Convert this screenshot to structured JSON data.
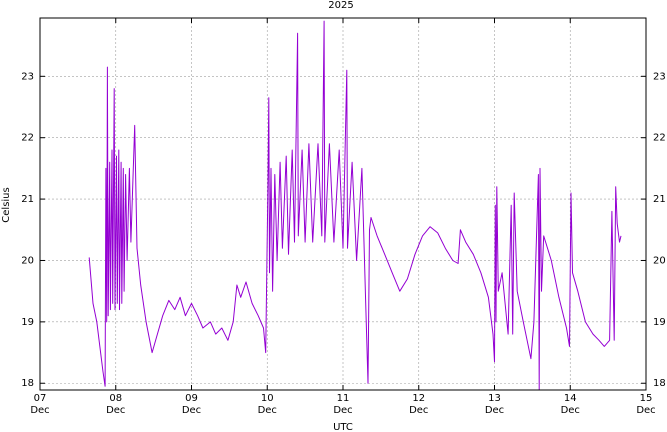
{
  "chart_data": {
    "type": "line",
    "title": "2025",
    "x_label": "UTC",
    "y_label": "Celsius",
    "color": "#9400d3",
    "grid": true,
    "xlim": [
      7,
      15
    ],
    "xticks": [
      {
        "value": 7,
        "label": "07 Dec"
      },
      {
        "value": 8,
        "label": "08 Dec"
      },
      {
        "value": 9,
        "label": "09 Dec"
      },
      {
        "value": 10,
        "label": "10 Dec"
      },
      {
        "value": 11,
        "label": "11 Dec"
      },
      {
        "value": 12,
        "label": "12 Dec"
      },
      {
        "value": 13,
        "label": "13 Dec"
      },
      {
        "value": 14,
        "label": "14 Dec"
      },
      {
        "value": 15,
        "label": "15 Dec"
      }
    ],
    "ylim": [
      17.89,
      23.95
    ],
    "yticks": [
      18,
      19,
      20,
      21,
      22,
      23
    ],
    "x": [
      7.65,
      7.7,
      7.75,
      7.8,
      7.83,
      7.86,
      7.87,
      7.88,
      7.89,
      7.9,
      7.92,
      7.93,
      7.95,
      7.96,
      7.98,
      7.99,
      8.01,
      8.02,
      8.04,
      8.05,
      8.07,
      8.08,
      8.1,
      8.11,
      8.13,
      8.15,
      8.18,
      8.2,
      8.25,
      8.28,
      8.33,
      8.4,
      8.48,
      8.55,
      8.62,
      8.7,
      8.78,
      8.85,
      8.92,
      9.0,
      9.08,
      9.15,
      9.25,
      9.32,
      9.4,
      9.48,
      9.55,
      9.6,
      9.65,
      9.72,
      9.8,
      9.88,
      9.95,
      9.98,
      10.01,
      10.02,
      10.03,
      10.05,
      10.07,
      10.1,
      10.13,
      10.17,
      10.2,
      10.25,
      10.28,
      10.33,
      10.36,
      10.4,
      10.41,
      10.46,
      10.5,
      10.55,
      10.6,
      10.67,
      10.72,
      10.75,
      10.76,
      10.82,
      10.88,
      10.95,
      11.0,
      11.05,
      11.06,
      11.12,
      11.18,
      11.25,
      11.3,
      11.33,
      11.35,
      11.37,
      11.45,
      11.55,
      11.65,
      11.75,
      11.85,
      11.95,
      12.05,
      12.15,
      12.25,
      12.35,
      12.45,
      12.52,
      12.55,
      12.62,
      12.72,
      12.82,
      12.92,
      12.98,
      13.0,
      13.01,
      13.02,
      13.03,
      13.05,
      13.1,
      13.18,
      13.22,
      13.24,
      13.26,
      13.3,
      13.38,
      13.48,
      13.52,
      13.58,
      13.59,
      13.6,
      13.62,
      13.65,
      13.75,
      13.85,
      13.95,
      13.99,
      14.01,
      14.03,
      14.1,
      14.2,
      14.3,
      14.38,
      14.45,
      14.52,
      14.55,
      14.58,
      14.6,
      14.62,
      14.65,
      14.67
    ],
    "values": [
      20.05,
      19.3,
      19.0,
      18.5,
      18.2,
      17.95,
      21.5,
      19.0,
      23.15,
      19.1,
      21.6,
      19.2,
      21.8,
      19.3,
      22.8,
      19.2,
      21.7,
      19.3,
      21.8,
      19.2,
      21.6,
      19.3,
      21.5,
      19.5,
      21.4,
      20.0,
      21.5,
      20.3,
      22.2,
      20.2,
      19.6,
      19.0,
      18.5,
      18.8,
      19.1,
      19.35,
      19.2,
      19.4,
      19.1,
      19.3,
      19.1,
      18.9,
      19.0,
      18.8,
      18.9,
      18.7,
      19.0,
      19.6,
      19.4,
      19.65,
      19.3,
      19.1,
      18.9,
      18.5,
      21.3,
      22.65,
      19.8,
      21.5,
      19.5,
      21.4,
      20.0,
      21.6,
      20.2,
      21.7,
      20.1,
      21.8,
      20.3,
      23.7,
      20.4,
      21.8,
      20.3,
      21.9,
      20.3,
      21.9,
      20.4,
      23.9,
      20.3,
      21.9,
      20.3,
      21.8,
      20.2,
      23.1,
      20.2,
      21.6,
      20.0,
      21.5,
      19.3,
      18.0,
      20.5,
      20.7,
      20.4,
      20.1,
      19.8,
      19.5,
      19.7,
      20.1,
      20.4,
      20.55,
      20.45,
      20.2,
      20.0,
      19.95,
      20.5,
      20.3,
      20.1,
      19.8,
      19.4,
      18.8,
      18.35,
      20.9,
      19.0,
      21.2,
      19.5,
      19.8,
      18.8,
      20.9,
      18.8,
      21.1,
      19.5,
      19.0,
      18.4,
      19.0,
      21.4,
      17.9,
      21.5,
      19.5,
      20.4,
      20.0,
      19.4,
      18.9,
      18.6,
      21.1,
      19.8,
      19.5,
      19.0,
      18.8,
      18.7,
      18.6,
      18.7,
      20.8,
      18.7,
      21.2,
      20.6,
      20.3,
      20.4
    ]
  }
}
